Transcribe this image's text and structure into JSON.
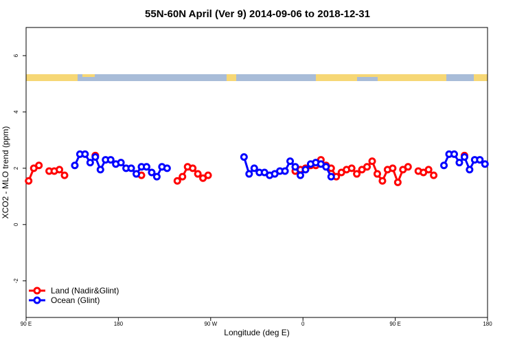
{
  "chart_data": {
    "type": "line",
    "title": "55N-60N April (Ver 9)   2014-09-06 to 2018-12-31",
    "x_label": "Longitude (deg E)",
    "y_label": "XCO2 - MLO trend (ppm)",
    "xlim": [
      90,
      540
    ],
    "xticks": [
      {
        "value": 90,
        "label": "90 E"
      },
      180,
      {
        "value": 270,
        "label": "90 W"
      },
      {
        "value": 360,
        "label": "0"
      },
      {
        "value": 450,
        "label": "90 E"
      },
      {
        "value": 540,
        "label": "180"
      }
    ],
    "ylim": [
      -3.3,
      7
    ],
    "yticks": [
      -2,
      0,
      2,
      4,
      6
    ],
    "legend": "bottom-left",
    "series": [
      {
        "name": "Land (Nadir&Glint)",
        "color": "#ff0000",
        "x": [
          92.5,
          97.5,
          102.5,
          null,
          112.5,
          117.5,
          122.5,
          127.5,
          null,
          157.5,
          null,
          202.5,
          null,
          237.5,
          242.5,
          247.5,
          252.5,
          257.5,
          262.5,
          267.5,
          null,
          352.5,
          357.5,
          362.5,
          367.5,
          372.5,
          377.5,
          382.5,
          387.5,
          392.5,
          397.5,
          402.5,
          407.5,
          412.5,
          417.5,
          422.5,
          427.5,
          432.5,
          437.5,
          442.5,
          447.5,
          452.5,
          457.5,
          462.5,
          null,
          472.5,
          477.5,
          482.5,
          487.5,
          null,
          517.5
        ],
        "values": [
          1.55,
          2.0,
          2.1,
          null,
          1.9,
          1.9,
          1.95,
          1.75,
          null,
          2.45,
          null,
          1.75,
          null,
          1.55,
          1.7,
          2.05,
          2.0,
          1.8,
          1.65,
          1.75,
          null,
          1.9,
          1.95,
          2.0,
          2.1,
          2.1,
          2.3,
          2.1,
          2.0,
          1.7,
          1.85,
          1.95,
          2.0,
          1.8,
          1.95,
          2.05,
          2.25,
          1.8,
          1.55,
          1.95,
          2.0,
          1.5,
          1.95,
          2.05,
          null,
          1.9,
          1.85,
          1.95,
          1.75,
          null,
          2.45
        ]
      },
      {
        "name": "Ocean (Glint)",
        "color": "#0000ff",
        "x": [
          137.5,
          142.5,
          147.5,
          152.5,
          157.5,
          162.5,
          167.5,
          172.5,
          177.5,
          182.5,
          187.5,
          192.5,
          197.5,
          202.5,
          207.5,
          212.5,
          217.5,
          222.5,
          227.5,
          null,
          302.5,
          307.5,
          312.5,
          317.5,
          322.5,
          327.5,
          332.5,
          337.5,
          342.5,
          347.5,
          352.5,
          357.5,
          362.5,
          367.5,
          372.5,
          377.5,
          382.5,
          387.5,
          null,
          497.5,
          502.5,
          507.5,
          512.5,
          517.5,
          522.5,
          527.5,
          532.5,
          537.5
        ],
        "values": [
          2.1,
          2.5,
          2.5,
          2.2,
          2.4,
          1.95,
          2.3,
          2.3,
          2.15,
          2.2,
          2.0,
          2.0,
          1.8,
          2.05,
          2.05,
          1.85,
          1.7,
          2.05,
          2.0,
          null,
          2.4,
          1.8,
          2.0,
          1.85,
          1.85,
          1.75,
          1.8,
          1.9,
          1.9,
          2.25,
          2.05,
          1.75,
          1.95,
          2.15,
          2.2,
          2.15,
          2.05,
          1.7,
          null,
          2.1,
          2.5,
          2.5,
          2.2,
          2.4,
          1.95,
          2.3,
          2.3,
          2.15
        ]
      }
    ]
  }
}
